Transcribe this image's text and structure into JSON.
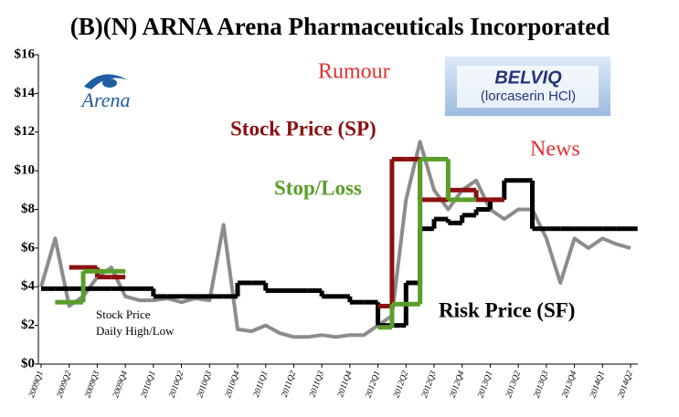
{
  "chart_data": {
    "type": "line",
    "title": "(B)(N) ARNA Arena Pharmaceuticals Incorporated",
    "categories": [
      "2009Q1",
      null,
      "2009Q2",
      null,
      "2009Q3",
      null,
      "2009Q4",
      null,
      "2010Q1",
      null,
      "2010Q2",
      null,
      "2010Q3",
      null,
      "2010Q4",
      null,
      "2011Q1",
      null,
      "2011Q2",
      null,
      "2011Q3",
      null,
      "2011Q4",
      null,
      "2012Q1",
      null,
      "2012Q2",
      null,
      "2012Q3",
      null,
      "2012Q4",
      null,
      "2013Q1",
      null,
      "2013Q2",
      null,
      "2013Q3",
      null,
      "2013Q4",
      null,
      "2014Q1",
      null,
      "2014Q2"
    ],
    "series": [
      {
        "color": "#8c8c8c",
        "style": "line",
        "values": [
          4.0,
          6.5,
          3.0,
          3.5,
          4.5,
          5.0,
          3.5,
          3.3,
          3.3,
          3.4,
          3.2,
          3.4,
          3.3,
          7.2,
          1.8,
          1.7,
          2.0,
          1.6,
          1.4,
          1.4,
          1.5,
          1.4,
          1.5,
          1.5,
          2.0,
          2.5,
          8.5,
          11.5,
          9.0,
          8.0,
          9.0,
          9.5,
          8.0,
          7.5,
          8.0,
          8.0,
          6.5,
          4.2,
          6.5,
          6.0,
          6.5,
          6.2,
          6.0
        ]
      },
      {
        "name": "Risk Price (SF)",
        "color": "#000000",
        "style": "step",
        "values": [
          3.9,
          3.9,
          3.9,
          3.9,
          3.9,
          3.9,
          3.9,
          3.9,
          3.5,
          3.5,
          3.5,
          3.5,
          3.5,
          3.5,
          4.2,
          4.2,
          3.8,
          3.8,
          3.8,
          3.8,
          3.5,
          3.5,
          3.2,
          3.2,
          2.0,
          2.0,
          4.2,
          7.0,
          7.5,
          7.3,
          7.7,
          8.0,
          8.5,
          9.5,
          9.5,
          7.0,
          7.0,
          7.0,
          7.0,
          7.0,
          7.0,
          7.0,
          7.0
        ]
      },
      {
        "name": "Stock Price (SP)",
        "color": "#8b1010",
        "style": "step",
        "values": [
          null,
          null,
          5.0,
          5.0,
          4.5,
          4.5,
          null,
          null,
          null,
          null,
          null,
          null,
          null,
          null,
          null,
          null,
          null,
          null,
          null,
          null,
          null,
          null,
          null,
          null,
          3.0,
          10.6,
          10.6,
          8.5,
          8.5,
          9.0,
          9.0,
          8.5,
          8.5,
          null,
          null,
          null,
          null,
          null,
          null,
          null,
          null,
          null,
          null
        ]
      },
      {
        "name": "Stop/Loss",
        "color": "#5a9e2a",
        "style": "step",
        "values": [
          null,
          3.2,
          3.2,
          4.8,
          4.8,
          4.8,
          null,
          null,
          null,
          null,
          null,
          null,
          null,
          null,
          null,
          null,
          null,
          null,
          null,
          null,
          null,
          null,
          null,
          null,
          1.9,
          3.1,
          3.1,
          10.6,
          10.6,
          8.5,
          8.5,
          null,
          null,
          null,
          null,
          null,
          null,
          null,
          null,
          null,
          null,
          null,
          null
        ]
      }
    ],
    "annotations": {
      "rumour": "Rumour",
      "news": "News",
      "stock_price_1": "Stock Price",
      "stock_price_2": "Daily High/Low"
    },
    "logos": {
      "arena": "Arena",
      "belviq": "BELVIQ",
      "belviq_sub": "(lorcaserin HCl)"
    },
    "ylim": [
      0,
      16
    ],
    "yticks": [
      {
        "value": 0,
        "label": "$0"
      },
      {
        "value": 2,
        "label": "$2"
      },
      {
        "value": 4,
        "label": "$4"
      },
      {
        "value": 6,
        "label": "$6"
      },
      {
        "value": 8,
        "label": "$8"
      },
      {
        "value": 10,
        "label": "$10"
      },
      {
        "value": 12,
        "label": "$12"
      },
      {
        "value": 14,
        "label": "$14"
      },
      {
        "value": 16,
        "label": "$16"
      }
    ],
    "grid": false
  }
}
